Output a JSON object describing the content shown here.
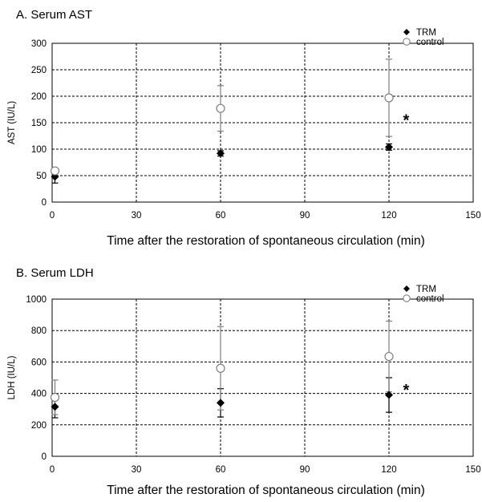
{
  "chart_data": [
    {
      "type": "scatter",
      "title": "A. Serum AST",
      "xlabel": "Time after the restoration of spontaneous circulation (min)",
      "ylabel": "AST (IU/L)",
      "xlim": [
        0,
        150
      ],
      "ylim": [
        0,
        300
      ],
      "xticks": [
        0,
        30,
        60,
        90,
        120,
        150
      ],
      "yticks": [
        0,
        50,
        100,
        150,
        200,
        250,
        300
      ],
      "grid": true,
      "legend_position": "top-right",
      "series": [
        {
          "name": "TRM",
          "marker": "filled-diamond",
          "color": "#000000",
          "points": [
            {
              "x": 1,
              "y": 48,
              "err": 12
            },
            {
              "x": 60,
              "y": 92,
              "err": 5
            },
            {
              "x": 120,
              "y": 104,
              "err": 6
            }
          ]
        },
        {
          "name": "control",
          "marker": "open-circle",
          "color": "#7f7f7f",
          "points": [
            {
              "x": 1,
              "y": 59,
              "err": 5
            },
            {
              "x": 60,
              "y": 177,
              "err": 43
            },
            {
              "x": 120,
              "y": 197,
              "err": 73
            }
          ]
        }
      ],
      "annotations": [
        {
          "text": "*",
          "x": 125,
          "y": 160
        }
      ]
    },
    {
      "type": "scatter",
      "title": "B. Serum LDH",
      "xlabel": "Time after the restoration of spontaneous circulation (min)",
      "ylabel": "LDH (IU/L)",
      "xlim": [
        0,
        150
      ],
      "ylim": [
        0,
        1000
      ],
      "xticks": [
        0,
        30,
        60,
        90,
        120,
        150
      ],
      "yticks": [
        0,
        200,
        400,
        600,
        800,
        1000
      ],
      "grid": true,
      "legend_position": "top-right",
      "series": [
        {
          "name": "TRM",
          "marker": "filled-diamond",
          "color": "#000000",
          "points": [
            {
              "x": 1,
              "y": 315,
              "err": 70
            },
            {
              "x": 60,
              "y": 340,
              "err": 90
            },
            {
              "x": 120,
              "y": 390,
              "err": 110
            }
          ]
        },
        {
          "name": "control",
          "marker": "open-circle",
          "color": "#7f7f7f",
          "points": [
            {
              "x": 1,
              "y": 375,
              "err": 110
            },
            {
              "x": 60,
              "y": 560,
              "err": 265
            },
            {
              "x": 120,
              "y": 635,
              "err": 225
            }
          ]
        }
      ],
      "annotations": [
        {
          "text": "*",
          "x": 125,
          "y": 440
        }
      ]
    }
  ]
}
